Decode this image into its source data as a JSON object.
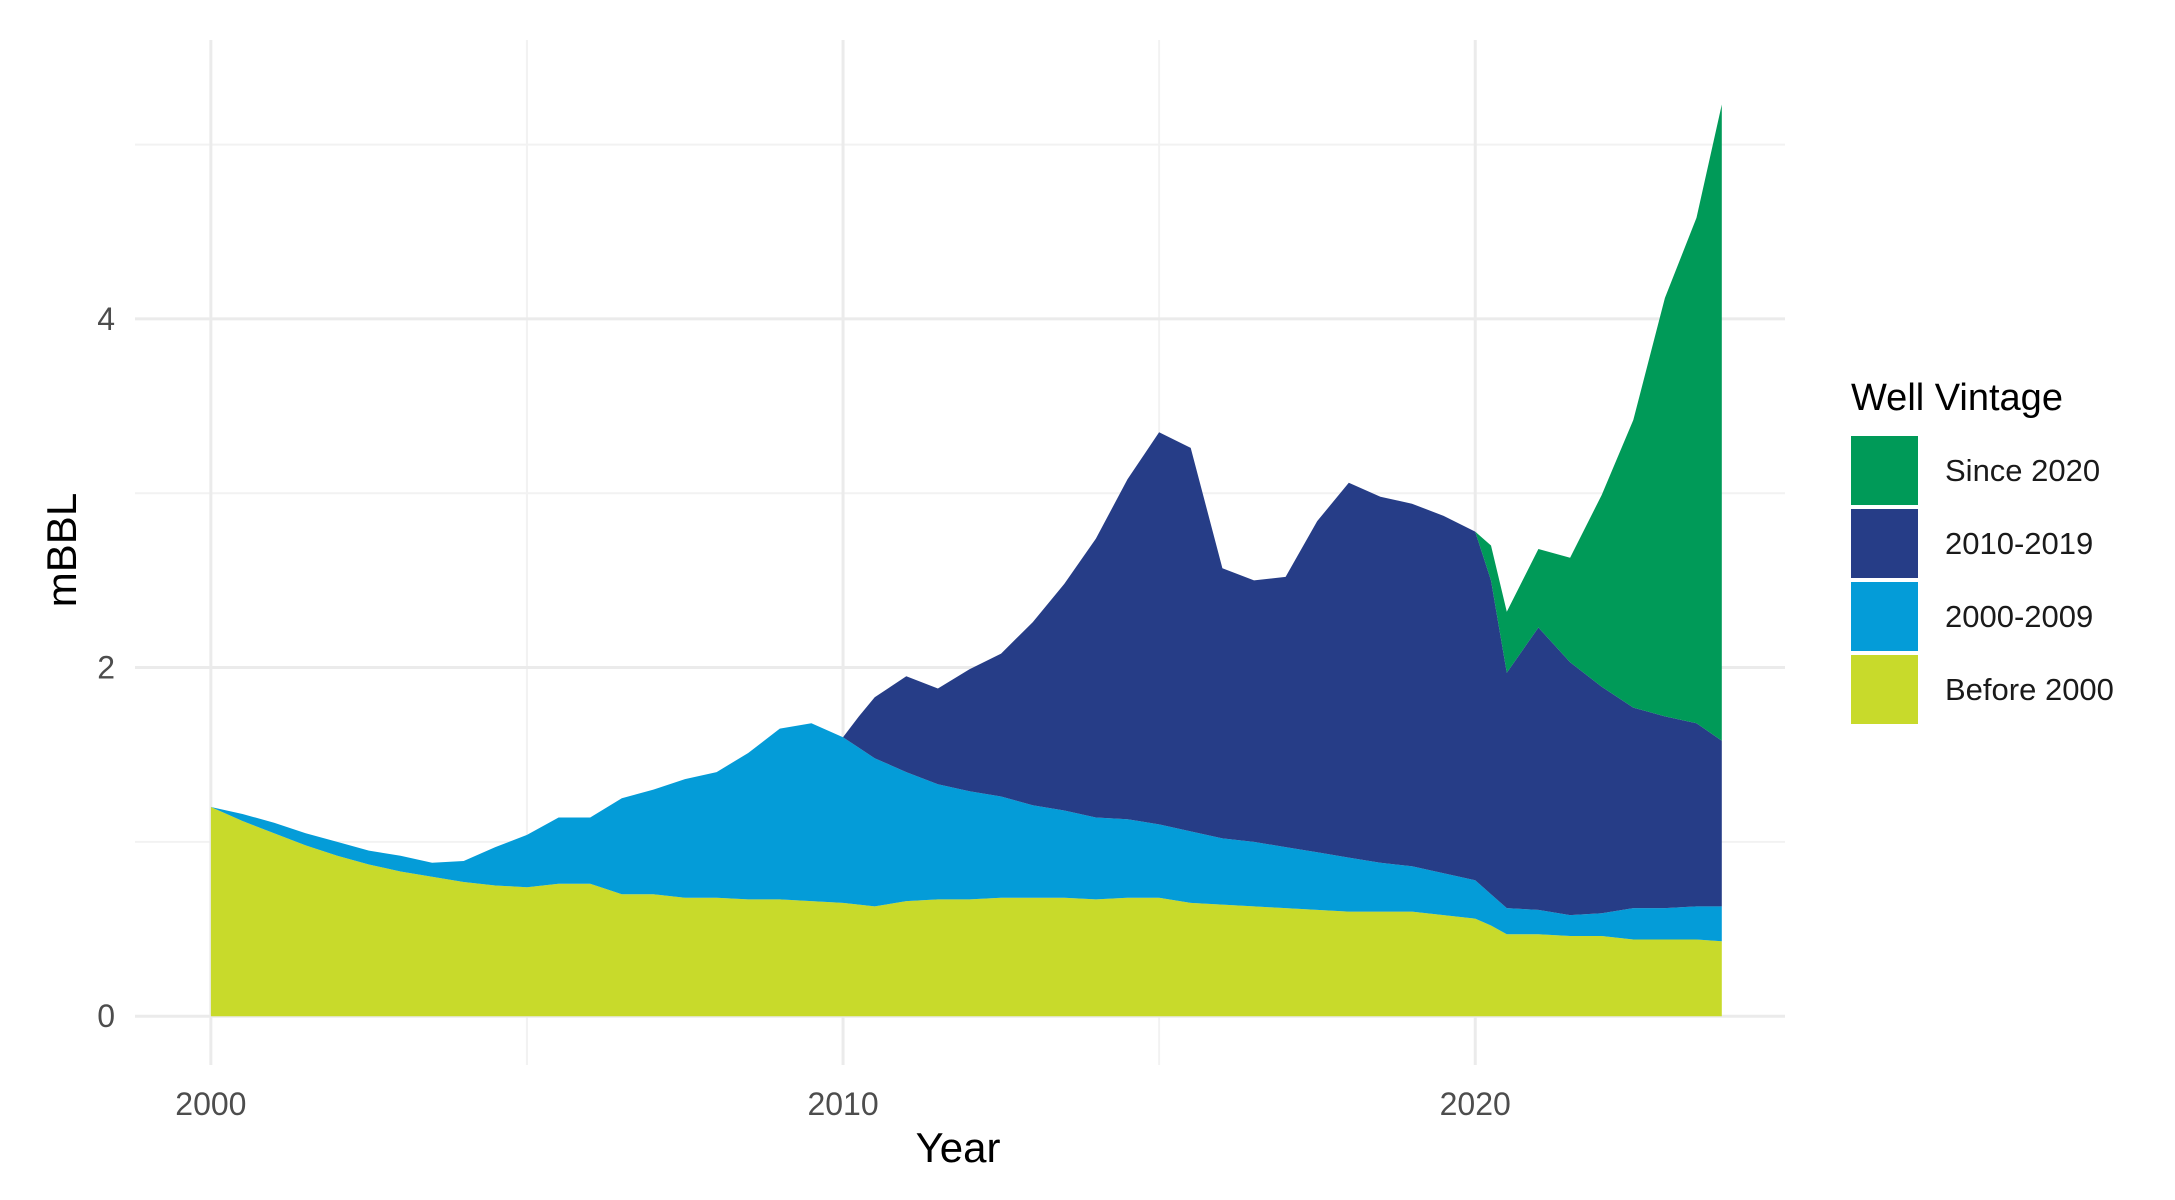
{
  "chart_data": {
    "type": "area",
    "stacked": true,
    "xlabel": "Year",
    "ylabel": "mBBL",
    "xlim": [
      1998.8,
      2024.9
    ],
    "ylim": [
      -0.28,
      5.6
    ],
    "x_ticks": [
      2000,
      2010,
      2020
    ],
    "y_ticks": [
      0,
      2,
      4
    ],
    "grid": true,
    "legend": {
      "title": "Well Vintage",
      "placement": "right",
      "order": [
        "Since 2020",
        "2010-2019",
        "2000-2009",
        "Before 2000"
      ]
    },
    "x": [
      2000.0,
      2000.5,
      2001.0,
      2001.5,
      2002.0,
      2002.5,
      2003.0,
      2003.5,
      2004.0,
      2004.5,
      2005.0,
      2005.5,
      2006.0,
      2006.5,
      2007.0,
      2007.5,
      2008.0,
      2008.5,
      2009.0,
      2009.5,
      2010.0,
      2010.25,
      2010.5,
      2011.0,
      2011.5,
      2012.0,
      2012.5,
      2013.0,
      2013.5,
      2014.0,
      2014.5,
      2015.0,
      2015.5,
      2016.0,
      2016.5,
      2017.0,
      2017.5,
      2018.0,
      2018.5,
      2019.0,
      2019.5,
      2020.0,
      2020.25,
      2020.5,
      2021.0,
      2021.5,
      2022.0,
      2022.5,
      2023.0,
      2023.5,
      2023.9
    ],
    "series": [
      {
        "name": "Before 2000",
        "color": "#c8da2b",
        "values": [
          1.2,
          1.12,
          1.05,
          0.98,
          0.92,
          0.87,
          0.83,
          0.8,
          0.77,
          0.75,
          0.74,
          0.76,
          0.76,
          0.7,
          0.7,
          0.68,
          0.68,
          0.67,
          0.67,
          0.66,
          0.65,
          0.64,
          0.63,
          0.66,
          0.67,
          0.67,
          0.68,
          0.68,
          0.68,
          0.67,
          0.68,
          0.68,
          0.65,
          0.64,
          0.63,
          0.62,
          0.61,
          0.6,
          0.6,
          0.6,
          0.58,
          0.56,
          0.52,
          0.47,
          0.47,
          0.46,
          0.46,
          0.44,
          0.44,
          0.44,
          0.43
        ]
      },
      {
        "name": "2000-2009",
        "color": "#049cd8",
        "values": [
          0.0,
          0.04,
          0.06,
          0.07,
          0.08,
          0.08,
          0.09,
          0.08,
          0.12,
          0.22,
          0.3,
          0.38,
          0.38,
          0.55,
          0.6,
          0.68,
          0.72,
          0.84,
          0.98,
          1.02,
          0.95,
          0.9,
          0.85,
          0.74,
          0.66,
          0.62,
          0.58,
          0.53,
          0.5,
          0.47,
          0.45,
          0.42,
          0.41,
          0.38,
          0.37,
          0.35,
          0.33,
          0.31,
          0.28,
          0.26,
          0.24,
          0.22,
          0.18,
          0.15,
          0.14,
          0.12,
          0.13,
          0.18,
          0.18,
          0.19,
          0.2
        ]
      },
      {
        "name": "2010-2019",
        "color": "#263d87",
        "values": [
          0.0,
          0.0,
          0.0,
          0.0,
          0.0,
          0.0,
          0.0,
          0.0,
          0.0,
          0.0,
          0.0,
          0.0,
          0.0,
          0.0,
          0.0,
          0.0,
          0.0,
          0.0,
          0.0,
          0.0,
          0.0,
          0.18,
          0.35,
          0.55,
          0.55,
          0.7,
          0.82,
          1.05,
          1.3,
          1.6,
          1.95,
          2.25,
          2.2,
          1.55,
          1.5,
          1.55,
          1.9,
          2.15,
          2.1,
          2.08,
          2.05,
          2.0,
          1.8,
          1.35,
          1.62,
          1.45,
          1.3,
          1.15,
          1.1,
          1.05,
          0.95
        ]
      },
      {
        "name": "Since 2020",
        "color": "#009a58",
        "values": [
          0.0,
          0.0,
          0.0,
          0.0,
          0.0,
          0.0,
          0.0,
          0.0,
          0.0,
          0.0,
          0.0,
          0.0,
          0.0,
          0.0,
          0.0,
          0.0,
          0.0,
          0.0,
          0.0,
          0.0,
          0.0,
          0.0,
          0.0,
          0.0,
          0.0,
          0.0,
          0.0,
          0.0,
          0.0,
          0.0,
          0.0,
          0.0,
          0.0,
          0.0,
          0.0,
          0.0,
          0.0,
          0.0,
          0.0,
          0.0,
          0.0,
          0.0,
          0.2,
          0.35,
          0.45,
          0.6,
          1.1,
          1.65,
          2.4,
          2.9,
          3.65
        ]
      }
    ]
  }
}
